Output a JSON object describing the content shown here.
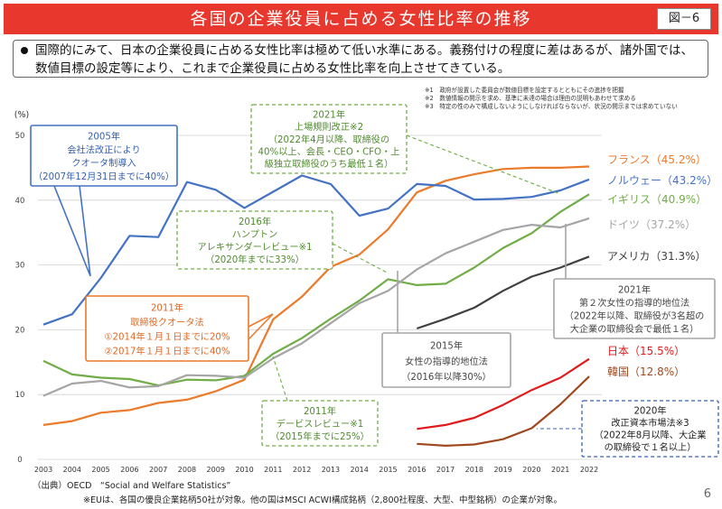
{
  "header": {
    "title": "各国の企業役員に占める女性比率の推移",
    "figure_no": "図－6"
  },
  "lead_text": "国際的にみて、日本の企業役員に占める女性比率は極めて低い水準にある。義務付けの程度に差はあるが、諸外国では、数値目標の設定等により、これまで企業役員に占める女性比率を向上させてきている。",
  "notes": [
    "※1　政府が設置した委員会が数値目標を設定するとともにその進捗を把握",
    "※2　数値情報の開示を求め、基準に未達の場合は理由の説明もあわせて求める",
    "※3　特定の性のみで構成しないようにしなければならないが、状況の開示までは求めていない"
  ],
  "annotations": {
    "fr2005": [
      "2005年",
      "会社法改正により",
      "クオータ制導入",
      "（2007年12月31日までに40%）"
    ],
    "uk2021": [
      "2021年",
      "上場規則改正※2",
      "（2022年4月以降、取締役の",
      "40%以上、会長・CEO・CFO・上",
      "級独立取締役のうち最低１名）"
    ],
    "uk2016": [
      "2016年",
      "ハンプトン",
      "アレキサンダーレビュー※1",
      "（2020年までに33%）"
    ],
    "it2011": [
      "2011年",
      "取締役クオータ法",
      "①2014年１月１日までに20%",
      "②2017年１月１日までに40%"
    ],
    "uk2011": [
      "2011年",
      "デービスレビュー※1",
      "（2015年までに25%）"
    ],
    "de2015": [
      "2015年",
      "女性の指導的地位法",
      "（2016年以降30%）"
    ],
    "de2021": [
      "2021年",
      "第２次女性の指導的地位法",
      "（2022年以降、取締役が3名超の",
      "大企業の取締役会で最低１名）"
    ],
    "kr2020": [
      "2020年",
      "改正資本市場法※3",
      "（2022年8月以降、大企業",
      "の取締役で１名以上）"
    ]
  },
  "chart_data": {
    "type": "line",
    "ylabel": "(%)",
    "ylim": [
      0,
      50
    ],
    "yticks": [
      "0",
      "10",
      "20",
      "30",
      "40",
      "50"
    ],
    "x": [
      "2003",
      "2004",
      "2005",
      "2006",
      "2007",
      "2008",
      "2009",
      "2010",
      "2011",
      "2012",
      "2013",
      "2014",
      "2015",
      "2016",
      "2017",
      "2018",
      "2019",
      "2020",
      "2021",
      "2022"
    ],
    "grid": true,
    "series": [
      {
        "name": "フランス",
        "end_label": "フランス（45.2%）",
        "color": "#ec7a2b",
        "values": [
          5.3,
          5.9,
          7.2,
          7.6,
          8.7,
          9.2,
          10.5,
          12.3,
          21.6,
          25.1,
          29.7,
          31.6,
          35.5,
          41.2,
          43.0,
          44.0,
          44.8,
          45.0,
          45.0,
          45.2
        ]
      },
      {
        "name": "ノルウェー",
        "end_label": "ノルウェー（43.2%）",
        "color": "#4472c4",
        "values": [
          20.8,
          22.4,
          28.0,
          34.5,
          34.3,
          42.8,
          41.6,
          38.8,
          41.3,
          43.8,
          42.5,
          37.6,
          38.7,
          42.5,
          42.2,
          40.1,
          40.2,
          40.5,
          41.5,
          43.2
        ]
      },
      {
        "name": "イギリス",
        "end_label": "イギリス（40.9%）",
        "color": "#70ad47",
        "values": [
          15.2,
          13.1,
          12.6,
          12.4,
          11.4,
          12.3,
          12.2,
          12.9,
          16.3,
          18.7,
          21.7,
          24.5,
          27.8,
          26.9,
          27.1,
          29.6,
          32.6,
          34.9,
          38.2,
          40.9
        ]
      },
      {
        "name": "ドイツ",
        "end_label": "ドイツ（37.2%）",
        "color": "#a5a5a5",
        "values": [
          9.8,
          11.7,
          12.1,
          11.1,
          11.3,
          13.0,
          12.9,
          12.6,
          15.6,
          17.9,
          21.0,
          24.1,
          26.0,
          29.3,
          31.8,
          33.6,
          35.4,
          36.2,
          35.8,
          37.2
        ]
      },
      {
        "name": "アメリカ",
        "end_label": "アメリカ（31.3%）",
        "color": "#404040",
        "values": [
          null,
          null,
          null,
          null,
          null,
          null,
          null,
          null,
          null,
          null,
          null,
          null,
          null,
          20.2,
          21.7,
          23.4,
          26.0,
          28.2,
          29.6,
          31.3
        ]
      },
      {
        "name": "日本",
        "end_label": "日本（15.5%）",
        "color": "#e31a1c",
        "values": [
          null,
          null,
          null,
          null,
          null,
          null,
          null,
          null,
          null,
          null,
          null,
          null,
          null,
          4.7,
          5.3,
          6.4,
          8.4,
          10.7,
          12.6,
          15.5
        ]
      },
      {
        "name": "韓国",
        "end_label": "韓国（12.8%）",
        "color": "#a0481e",
        "values": [
          null,
          null,
          null,
          null,
          null,
          null,
          null,
          null,
          null,
          null,
          null,
          null,
          null,
          2.4,
          2.1,
          2.3,
          3.1,
          4.8,
          8.5,
          12.8
        ]
      }
    ]
  },
  "footer": {
    "source": "（出典）OECD　“Social and Welfare Statistics”",
    "note": "※EUは、各国の優良企業銘柄50社が対象。他の国はMSCI ACWI構成銘柄（2,800社程度、大型、中型銘柄）の企業が対象。",
    "page": "6"
  }
}
